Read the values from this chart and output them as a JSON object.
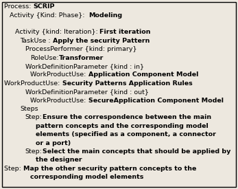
{
  "background_color": "#ede8df",
  "border_color": "#000000",
  "figsize": [
    3.47,
    2.75
  ],
  "dpi": 100,
  "fontsize": 6.8,
  "lines": [
    {
      "indent": 0,
      "reg": "Process: ",
      "bold": "SCRIP"
    },
    {
      "indent": 1,
      "reg": "Activity {Kind: Phase}:  ",
      "bold": "Modeling"
    },
    {
      "indent": 0,
      "reg": "",
      "bold": ""
    },
    {
      "indent": 2,
      "reg": "Activity {kind: Iteration}: ",
      "bold": "First iteration"
    },
    {
      "indent": 3,
      "reg": "TaskUse : ",
      "bold": "Apply the security Pattern"
    },
    {
      "indent": 4,
      "reg": "ProcessPerformer {kind: primary}",
      "bold": ""
    },
    {
      "indent": 5,
      "reg": "RoleUse:",
      "bold": "Transformer"
    },
    {
      "indent": 4,
      "reg": "WorkDefinitionParameter {kind : in}",
      "bold": ""
    },
    {
      "indent": 5,
      "reg": "WorkProductUse: ",
      "bold": "Application Component Model"
    },
    {
      "indent": 0,
      "reg": "WorkProductUse: ",
      "bold": "Security Patterns Application Rules"
    },
    {
      "indent": 4,
      "reg": "WorkDefinitionParameter {kind : out}",
      "bold": ""
    },
    {
      "indent": 5,
      "reg": "WorkProductUse: ",
      "bold": "SecureApplication Component Model"
    },
    {
      "indent": 3,
      "reg": "Steps",
      "bold": ""
    },
    {
      "indent": 4,
      "reg": "Step:",
      "bold": "Ensure the correspondence between the main"
    },
    {
      "indent": 6,
      "reg": "",
      "bold": "pattern concepts and the corresponding model"
    },
    {
      "indent": 6,
      "reg": "",
      "bold": "elements (specified as a component, a connector"
    },
    {
      "indent": 6,
      "reg": "",
      "bold": "or a port)"
    },
    {
      "indent": 4,
      "reg": "Step:",
      "bold": "Select the main concepts that should be applied by"
    },
    {
      "indent": 6,
      "reg": "",
      "bold": "the designer"
    },
    {
      "indent": 0,
      "reg": "Step: ",
      "bold": "Map the other security pattern concepts to the"
    },
    {
      "indent": 5,
      "reg": "",
      "bold": "corresponding model elements"
    }
  ]
}
